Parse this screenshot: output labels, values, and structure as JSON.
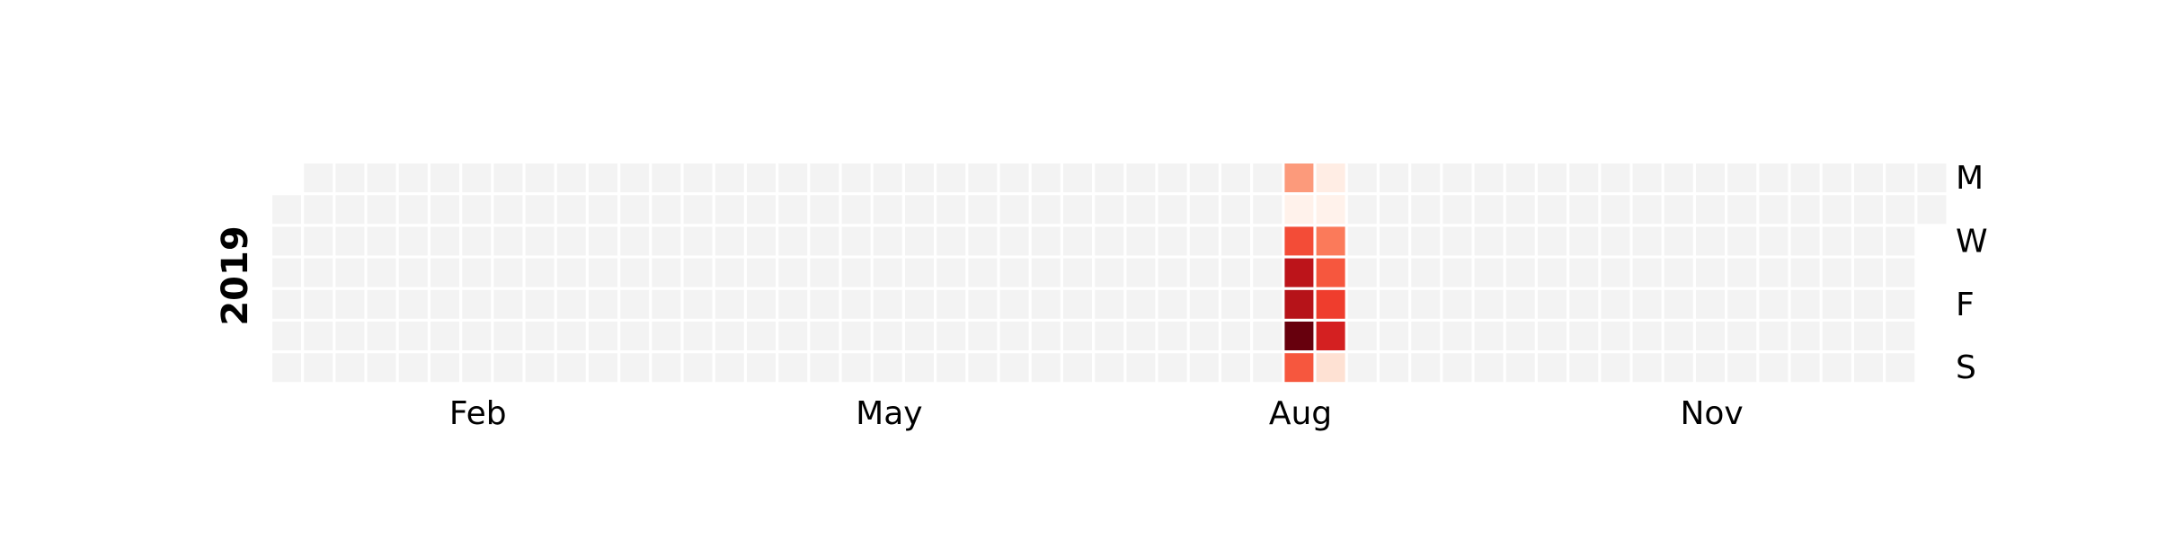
{
  "chart_data": {
    "type": "heatmap",
    "title": "",
    "year": "2019",
    "xlabel": "",
    "ylabel": "2019",
    "month_ticks": [
      {
        "label": "Feb",
        "week": 6.5
      },
      {
        "label": "May",
        "week": 19.5
      },
      {
        "label": "Aug",
        "week": 32.5
      },
      {
        "label": "Nov",
        "week": 45.5
      }
    ],
    "day_ticks": [
      {
        "label": "M",
        "day": 0
      },
      {
        "label": "W",
        "day": 2
      },
      {
        "label": "F",
        "day": 4
      },
      {
        "label": "S",
        "day": 6
      }
    ],
    "colorscale": {
      "name": "Reds",
      "empty_color": "#f3f3f3",
      "vmin": 0,
      "vmax": 1
    },
    "grid": false,
    "legend": "none",
    "values": [
      {
        "date": "2019-08-12",
        "value": 0.35
      },
      {
        "date": "2019-08-13",
        "value": 0.02
      },
      {
        "date": "2019-08-14",
        "value": 0.58
      },
      {
        "date": "2019-08-15",
        "value": 0.8
      },
      {
        "date": "2019-08-16",
        "value": 0.82
      },
      {
        "date": "2019-08-17",
        "value": 1.0
      },
      {
        "date": "2019-08-18",
        "value": 0.55
      },
      {
        "date": "2019-08-19",
        "value": 0.05
      },
      {
        "date": "2019-08-20",
        "value": 0.02
      },
      {
        "date": "2019-08-21",
        "value": 0.45
      },
      {
        "date": "2019-08-22",
        "value": 0.55
      },
      {
        "date": "2019-08-23",
        "value": 0.62
      },
      {
        "date": "2019-08-24",
        "value": 0.72
      },
      {
        "date": "2019-08-25",
        "value": 0.12
      }
    ]
  }
}
